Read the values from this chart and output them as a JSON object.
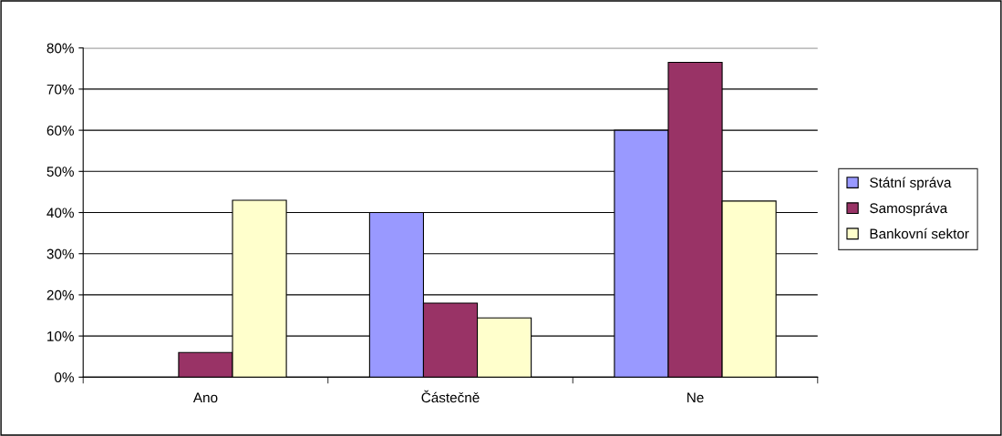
{
  "chart_data": {
    "type": "bar",
    "categories": [
      "Ano",
      "Částečně",
      "Ne"
    ],
    "series": [
      {
        "name": "Státní správa",
        "color": "#9999ff",
        "values": [
          null,
          40,
          60
        ]
      },
      {
        "name": "Samospráva",
        "color": "#993366",
        "values": [
          6,
          18,
          76.5
        ]
      },
      {
        "name": "Bankovní sektor",
        "color": "#ffffcc",
        "values": [
          43,
          14.4,
          42.8
        ]
      }
    ],
    "ylim": [
      0,
      80
    ],
    "yticks": [
      {
        "value": 0,
        "label": "0%"
      },
      {
        "value": 10,
        "label": "10%"
      },
      {
        "value": 20,
        "label": "20%"
      },
      {
        "value": 30,
        "label": "30%"
      },
      {
        "value": 40,
        "label": "40%"
      },
      {
        "value": 50,
        "label": "50%"
      },
      {
        "value": 60,
        "label": "60%"
      },
      {
        "value": 70,
        "label": "70%"
      },
      {
        "value": 80,
        "label": "80%"
      }
    ],
    "grid": "y",
    "legend": "right"
  }
}
